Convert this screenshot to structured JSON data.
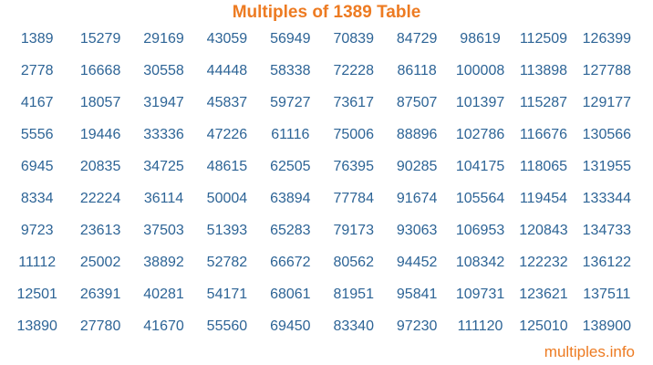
{
  "title": "Multiples of 1389 Table",
  "colors": {
    "accent_orange": "#ED7B22",
    "number_blue": "#2D6496"
  },
  "table": {
    "rows": [
      [
        "1389",
        "15279",
        "29169",
        "43059",
        "56949",
        "70839",
        "84729",
        "98619",
        "112509",
        "126399"
      ],
      [
        "2778",
        "16668",
        "30558",
        "44448",
        "58338",
        "72228",
        "86118",
        "100008",
        "113898",
        "127788"
      ],
      [
        "4167",
        "18057",
        "31947",
        "45837",
        "59727",
        "73617",
        "87507",
        "101397",
        "115287",
        "129177"
      ],
      [
        "5556",
        "19446",
        "33336",
        "47226",
        "61116",
        "75006",
        "88896",
        "102786",
        "116676",
        "130566"
      ],
      [
        "6945",
        "20835",
        "34725",
        "48615",
        "62505",
        "76395",
        "90285",
        "104175",
        "118065",
        "131955"
      ],
      [
        "8334",
        "22224",
        "36114",
        "50004",
        "63894",
        "77784",
        "91674",
        "105564",
        "119454",
        "133344"
      ],
      [
        "9723",
        "23613",
        "37503",
        "51393",
        "65283",
        "79173",
        "93063",
        "106953",
        "120843",
        "134733"
      ],
      [
        "11112",
        "25002",
        "38892",
        "52782",
        "66672",
        "80562",
        "94452",
        "108342",
        "122232",
        "136122"
      ],
      [
        "12501",
        "26391",
        "40281",
        "54171",
        "68061",
        "81951",
        "95841",
        "109731",
        "123621",
        "137511"
      ],
      [
        "13890",
        "27780",
        "41670",
        "55560",
        "69450",
        "83340",
        "97230",
        "111120",
        "125010",
        "138900"
      ]
    ]
  },
  "footer": {
    "link_label": "multiples.info"
  }
}
